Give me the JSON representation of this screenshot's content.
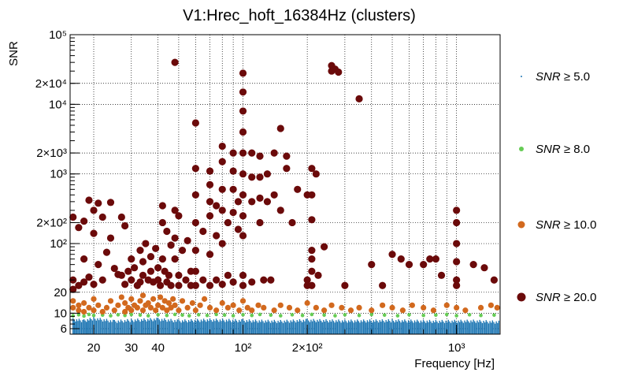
{
  "chart_data": {
    "type": "scatter",
    "title": "V1:Hrec_hoft_16384Hz (clusters)",
    "xlabel": "Frequency [Hz]",
    "ylabel": "SNR",
    "xscale": "log",
    "yscale": "log",
    "xlim": [
      15.5,
      1600
    ],
    "ylim": [
      5,
      100000
    ],
    "x_ticks": [
      {
        "value": 20,
        "label": "20"
      },
      {
        "value": 30,
        "label": "30"
      },
      {
        "value": 40,
        "label": "40"
      },
      {
        "value": 100,
        "label": "10²"
      },
      {
        "value": 200,
        "label": "2×10²"
      },
      {
        "value": 1000,
        "label": "10³"
      }
    ],
    "y_ticks": [
      {
        "value": 6,
        "label": "6"
      },
      {
        "value": 10,
        "label": "10"
      },
      {
        "value": 20,
        "label": "20"
      },
      {
        "value": 100,
        "label": "10²"
      },
      {
        "value": 200,
        "label": "2×10²"
      },
      {
        "value": 1000,
        "label": "10³"
      },
      {
        "value": 2000,
        "label": "2×10³"
      },
      {
        "value": 10000,
        "label": "10⁴"
      },
      {
        "value": 20000,
        "label": "2×10⁴"
      },
      {
        "value": 100000,
        "label": "10⁵"
      }
    ],
    "grid": true,
    "legend_position": "right",
    "series": [
      {
        "name": "SNR ≥ 5.0",
        "legend_prefix": "SNR",
        "legend_suffix": " ≥ 5.0",
        "color": "#1f77b4",
        "marker": "band",
        "points": [
          [
            16,
            8.5
          ],
          [
            18,
            8.2
          ],
          [
            20,
            8.8
          ],
          [
            25,
            8.0
          ],
          [
            30,
            8.3
          ],
          [
            40,
            8.6
          ],
          [
            50,
            8.1
          ],
          [
            70,
            8.4
          ],
          [
            100,
            8.2
          ],
          [
            150,
            8.0
          ],
          [
            200,
            8.3
          ],
          [
            300,
            8.1
          ],
          [
            500,
            8.2
          ],
          [
            800,
            8.0
          ],
          [
            1200,
            8.1
          ],
          [
            1600,
            7.8
          ]
        ]
      },
      {
        "name": "SNR ≥ 8.0",
        "legend_prefix": "SNR",
        "legend_suffix": " ≥ 8.0",
        "color": "#66cc55",
        "marker": "dot",
        "points": [
          [
            16,
            9.2
          ],
          [
            17,
            9.5
          ],
          [
            18,
            9.1
          ],
          [
            19,
            9.6
          ],
          [
            20,
            9.3
          ],
          [
            22,
            9.4
          ],
          [
            24,
            9.2
          ],
          [
            26,
            9.5
          ],
          [
            28,
            9.3
          ],
          [
            30,
            9.6
          ],
          [
            33,
            9.4
          ],
          [
            36,
            9.2
          ],
          [
            40,
            9.5
          ],
          [
            44,
            9.3
          ],
          [
            48,
            9.6
          ],
          [
            52,
            9.4
          ],
          [
            56,
            9.2
          ],
          [
            62,
            9.5
          ],
          [
            68,
            9.3
          ],
          [
            75,
            9.6
          ],
          [
            82,
            9.4
          ],
          [
            90,
            9.2
          ],
          [
            100,
            9.5
          ],
          [
            110,
            9.3
          ],
          [
            120,
            9.6
          ],
          [
            135,
            9.4
          ],
          [
            150,
            9.2
          ],
          [
            170,
            9.5
          ],
          [
            190,
            9.3
          ],
          [
            210,
            9.6
          ],
          [
            240,
            9.4
          ],
          [
            270,
            9.2
          ],
          [
            300,
            9.5
          ],
          [
            350,
            9.3
          ],
          [
            400,
            9.6
          ],
          [
            460,
            9.4
          ],
          [
            530,
            9.2
          ],
          [
            600,
            9.5
          ],
          [
            700,
            9.3
          ],
          [
            800,
            9.4
          ],
          [
            900,
            9.6
          ],
          [
            1000,
            9.2
          ],
          [
            1150,
            9.5
          ],
          [
            1300,
            9.3
          ],
          [
            1500,
            9.4
          ]
        ]
      },
      {
        "name": "SNR ≥ 10.0",
        "legend_prefix": "SNR",
        "legend_suffix": " ≥ 10.0",
        "color": "#d2691e",
        "marker": "dot",
        "points": [
          [
            16,
            12
          ],
          [
            16,
            15
          ],
          [
            17,
            11
          ],
          [
            17,
            13
          ],
          [
            18,
            10.5
          ],
          [
            18,
            14
          ],
          [
            19,
            12
          ],
          [
            20,
            11
          ],
          [
            20,
            16
          ],
          [
            21,
            13
          ],
          [
            22,
            10.5
          ],
          [
            23,
            12
          ],
          [
            24,
            15
          ],
          [
            25,
            11
          ],
          [
            26,
            13
          ],
          [
            27,
            17
          ],
          [
            28,
            10.5
          ],
          [
            28,
            14
          ],
          [
            29,
            12
          ],
          [
            30,
            11
          ],
          [
            30,
            16
          ],
          [
            31,
            13
          ],
          [
            32,
            12
          ],
          [
            33,
            15
          ],
          [
            34,
            11
          ],
          [
            34,
            18
          ],
          [
            35,
            13
          ],
          [
            36,
            14
          ],
          [
            37,
            12
          ],
          [
            38,
            16
          ],
          [
            39,
            11
          ],
          [
            40,
            13
          ],
          [
            41,
            17
          ],
          [
            42,
            12
          ],
          [
            43,
            15
          ],
          [
            44,
            11
          ],
          [
            45,
            14
          ],
          [
            46,
            12
          ],
          [
            47,
            16
          ],
          [
            48,
            13
          ],
          [
            50,
            11
          ],
          [
            52,
            15
          ],
          [
            55,
            12
          ],
          [
            58,
            14
          ],
          [
            60,
            11
          ],
          [
            63,
            13
          ],
          [
            66,
            16
          ],
          [
            70,
            12
          ],
          [
            75,
            11
          ],
          [
            80,
            14
          ],
          [
            85,
            12
          ],
          [
            90,
            13
          ],
          [
            96,
            11
          ],
          [
            100,
            15
          ],
          [
            105,
            12
          ],
          [
            110,
            11
          ],
          [
            118,
            13
          ],
          [
            125,
            12
          ],
          [
            140,
            11
          ],
          [
            150,
            13
          ],
          [
            165,
            12
          ],
          [
            180,
            11
          ],
          [
            200,
            14
          ],
          [
            220,
            12
          ],
          [
            240,
            11
          ],
          [
            260,
            13
          ],
          [
            290,
            12
          ],
          [
            320,
            11
          ],
          [
            350,
            12
          ],
          [
            400,
            11
          ],
          [
            450,
            13
          ],
          [
            500,
            12
          ],
          [
            560,
            11
          ],
          [
            620,
            13
          ],
          [
            700,
            12
          ],
          [
            780,
            11
          ],
          [
            900,
            13
          ],
          [
            1000,
            12
          ],
          [
            1100,
            11
          ],
          [
            1300,
            12
          ],
          [
            1450,
            13
          ],
          [
            1550,
            12
          ]
        ]
      },
      {
        "name": "SNR ≥ 20.0",
        "legend_prefix": "SNR",
        "legend_suffix": " ≥ 20.0",
        "color": "#6b0a0a",
        "marker": "dot",
        "points": [
          [
            16,
            22
          ],
          [
            16,
            30
          ],
          [
            16,
            240
          ],
          [
            17,
            25
          ],
          [
            17,
            170
          ],
          [
            18,
            28
          ],
          [
            18,
            60
          ],
          [
            18,
            210
          ],
          [
            19,
            33
          ],
          [
            19,
            420
          ],
          [
            20,
            26
          ],
          [
            20,
            140
          ],
          [
            20,
            300
          ],
          [
            21,
            50
          ],
          [
            21,
            380
          ],
          [
            22,
            240
          ],
          [
            22,
            30
          ],
          [
            23,
            75
          ],
          [
            24,
            120
          ],
          [
            24,
            390
          ],
          [
            25,
            44
          ],
          [
            26,
            36
          ],
          [
            27,
            35
          ],
          [
            27,
            240
          ],
          [
            28,
            180
          ],
          [
            28,
            26
          ],
          [
            29,
            40
          ],
          [
            30,
            60
          ],
          [
            30,
            30
          ],
          [
            31,
            45
          ],
          [
            32,
            25
          ],
          [
            33,
            80
          ],
          [
            33,
            28
          ],
          [
            34,
            55
          ],
          [
            34,
            35
          ],
          [
            35,
            100
          ],
          [
            36,
            30
          ],
          [
            37,
            65
          ],
          [
            37,
            40
          ],
          [
            38,
            28
          ],
          [
            39,
            85
          ],
          [
            40,
            45
          ],
          [
            40,
            30
          ],
          [
            41,
            25
          ],
          [
            42,
            350
          ],
          [
            42,
            200
          ],
          [
            42,
            60
          ],
          [
            43,
            40
          ],
          [
            44,
            28
          ],
          [
            44,
            150
          ],
          [
            45,
            35
          ],
          [
            46,
            25
          ],
          [
            46,
            95
          ],
          [
            48,
            40000
          ],
          [
            48,
            300
          ],
          [
            48,
            120
          ],
          [
            48,
            60
          ],
          [
            50,
            250
          ],
          [
            50,
            35
          ],
          [
            50,
            25
          ],
          [
            52,
            80
          ],
          [
            54,
            30
          ],
          [
            55,
            110
          ],
          [
            57,
            40
          ],
          [
            57,
            25
          ],
          [
            60,
            5400
          ],
          [
            60,
            1200
          ],
          [
            60,
            500
          ],
          [
            60,
            200
          ],
          [
            60,
            80
          ],
          [
            60,
            40
          ],
          [
            60,
            25
          ],
          [
            65,
            150
          ],
          [
            65,
            30
          ],
          [
            70,
            1100
          ],
          [
            70,
            700
          ],
          [
            70,
            400
          ],
          [
            70,
            250
          ],
          [
            70,
            70
          ],
          [
            70,
            25
          ],
          [
            75,
            350
          ],
          [
            75,
            130
          ],
          [
            75,
            30
          ],
          [
            80,
            2500
          ],
          [
            80,
            1500
          ],
          [
            80,
            600
          ],
          [
            80,
            300
          ],
          [
            80,
            100
          ],
          [
            80,
            26
          ],
          [
            85,
            200
          ],
          [
            85,
            35
          ],
          [
            90,
            2000
          ],
          [
            90,
            1100
          ],
          [
            90,
            600
          ],
          [
            90,
            280
          ],
          [
            90,
            28
          ],
          [
            95,
            400
          ],
          [
            95,
            160
          ],
          [
            100,
            28000
          ],
          [
            100,
            15000
          ],
          [
            100,
            8000
          ],
          [
            100,
            4000
          ],
          [
            100,
            2000
          ],
          [
            100,
            1000
          ],
          [
            100,
            500
          ],
          [
            100,
            250
          ],
          [
            100,
            130
          ],
          [
            100,
            35
          ],
          [
            100,
            25
          ],
          [
            110,
            2000
          ],
          [
            110,
            900
          ],
          [
            110,
            400
          ],
          [
            110,
            28
          ],
          [
            120,
            1800
          ],
          [
            120,
            900
          ],
          [
            120,
            450
          ],
          [
            120,
            200
          ],
          [
            125,
            30
          ],
          [
            130,
            1000
          ],
          [
            130,
            400
          ],
          [
            135,
            30
          ],
          [
            140,
            2000
          ],
          [
            140,
            500
          ],
          [
            150,
            4500
          ],
          [
            150,
            300
          ],
          [
            160,
            1800
          ],
          [
            160,
            1200
          ],
          [
            170,
            200
          ],
          [
            180,
            600
          ],
          [
            200,
            500
          ],
          [
            200,
            30
          ],
          [
            200,
            25
          ],
          [
            210,
            1200
          ],
          [
            210,
            500
          ],
          [
            210,
            220
          ],
          [
            210,
            80
          ],
          [
            210,
            60
          ],
          [
            210,
            40
          ],
          [
            210,
            25
          ],
          [
            220,
            1000
          ],
          [
            225,
            35
          ],
          [
            240,
            90
          ],
          [
            260,
            36000
          ],
          [
            260,
            30000
          ],
          [
            270,
            32000
          ],
          [
            280,
            29000
          ],
          [
            300,
            25
          ],
          [
            350,
            12000
          ],
          [
            400,
            50
          ],
          [
            450,
            25
          ],
          [
            500,
            70
          ],
          [
            550,
            60
          ],
          [
            600,
            50
          ],
          [
            700,
            50
          ],
          [
            750,
            60
          ],
          [
            800,
            60
          ],
          [
            850,
            35
          ],
          [
            1000,
            300
          ],
          [
            1000,
            200
          ],
          [
            1000,
            100
          ],
          [
            1000,
            55
          ],
          [
            1000,
            30
          ],
          [
            1000,
            25
          ],
          [
            1200,
            50
          ],
          [
            1350,
            45
          ],
          [
            1500,
            30
          ]
        ]
      }
    ]
  }
}
